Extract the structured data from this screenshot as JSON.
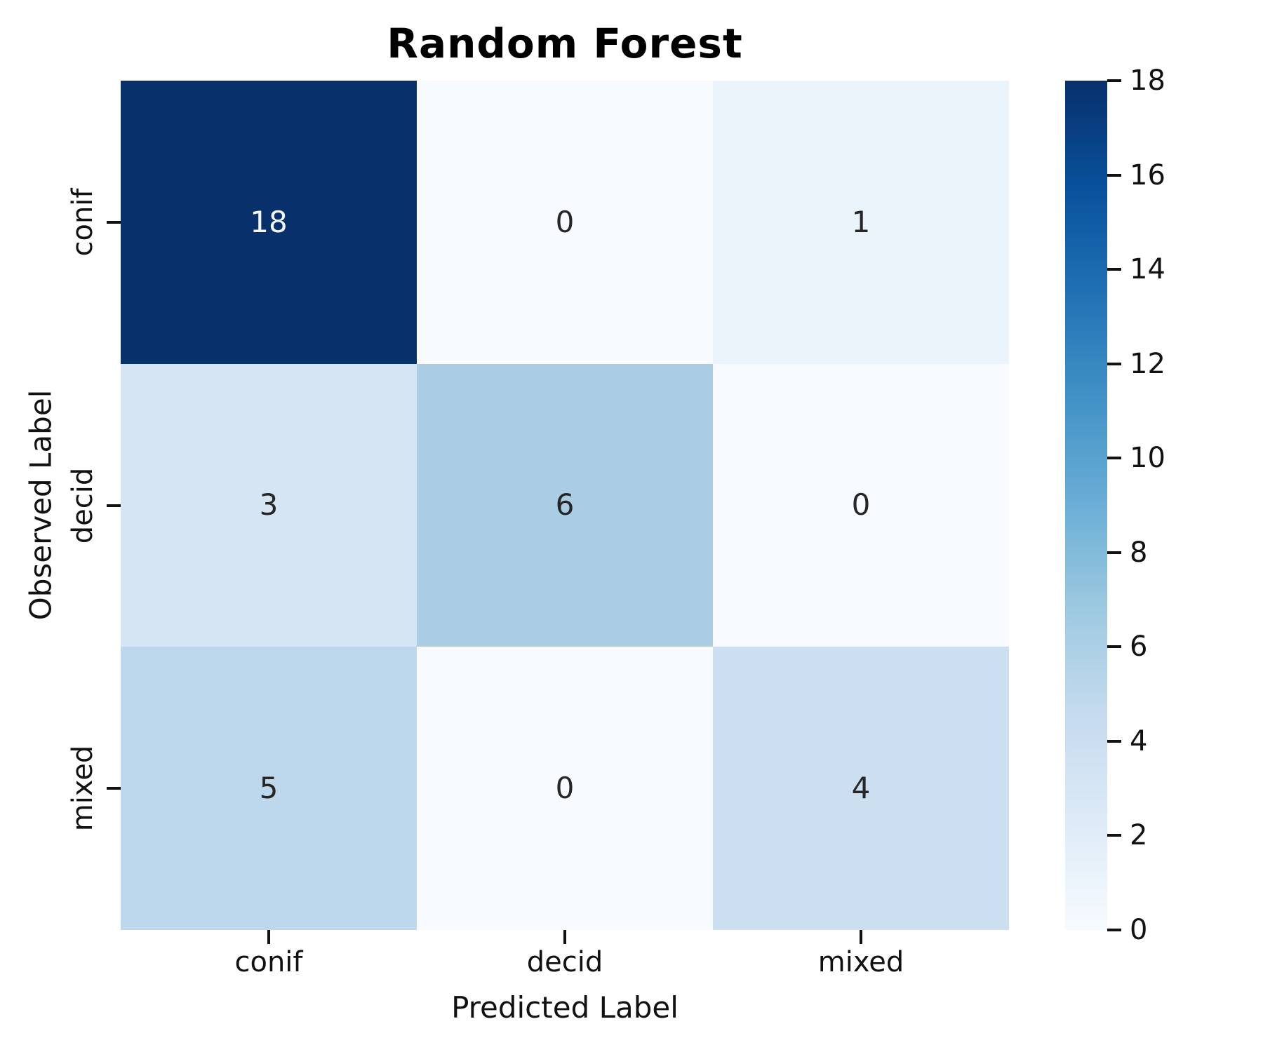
{
  "title": "Random Forest",
  "chart_data": {
    "type": "heatmap",
    "title": "Random Forest",
    "xlabel": "Predicted Label",
    "ylabel": "Observed Label",
    "x_categories": [
      "conif",
      "decid",
      "mixed"
    ],
    "y_categories": [
      "conif",
      "decid",
      "mixed"
    ],
    "matrix": [
      [
        18,
        0,
        1
      ],
      [
        3,
        6,
        0
      ],
      [
        5,
        0,
        4
      ]
    ],
    "cell_colors": [
      [
        "#08306b",
        "#f7fbff",
        "#ebf3fb"
      ],
      [
        "#d6e5f4",
        "#aacde4",
        "#f7fbff"
      ],
      [
        "#bdd8ec",
        "#f7fbff",
        "#cbdff0"
      ]
    ],
    "cell_text_colors": [
      [
        "#f2f7fc",
        "#262626",
        "#262626"
      ],
      [
        "#262626",
        "#262626",
        "#262626"
      ],
      [
        "#262626",
        "#262626",
        "#262626"
      ]
    ],
    "colormap": "Blues",
    "vmin": 0,
    "vmax": 18,
    "grid": false,
    "legend_position": "none",
    "colorbar": {
      "position": "right",
      "ticks": [
        0,
        2,
        4,
        6,
        8,
        10,
        12,
        14,
        16,
        18
      ],
      "gradient_stops": [
        "#f7fbff",
        "#deebf7",
        "#c6dbef",
        "#9ecae1",
        "#6baed6",
        "#4292c6",
        "#2171b5",
        "#08519c",
        "#08306b"
      ]
    }
  },
  "colors": {
    "background": "#ffffff",
    "axis_text": "#111111",
    "annotation_dark": "#262626",
    "annotation_light": "#f2f7fc",
    "cmap_max": "#08306b",
    "cmap_min": "#f7fbff"
  }
}
